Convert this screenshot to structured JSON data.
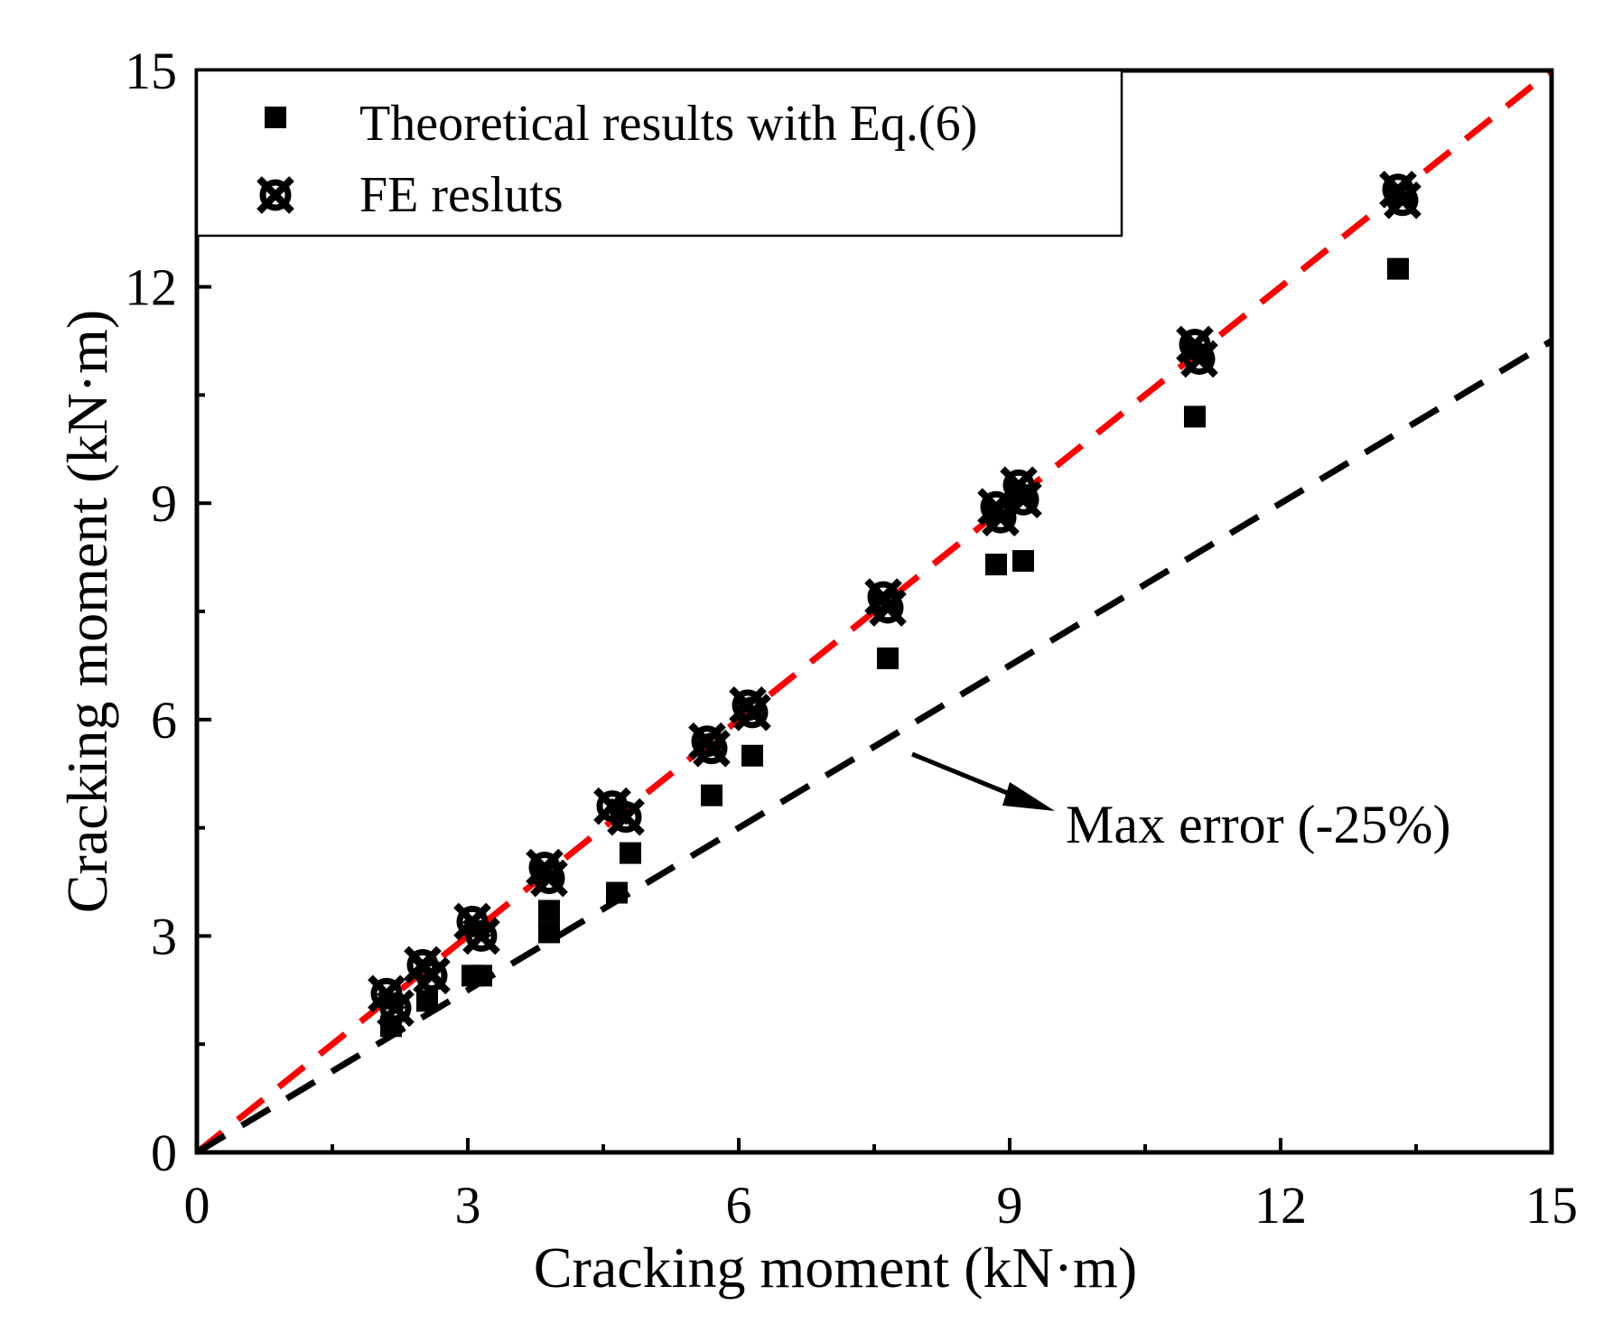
{
  "chart_data": {
    "type": "scatter",
    "xlabel": "Cracking moment (kN·m)",
    "ylabel": "Cracking moment (kN·m)",
    "xlim": [
      0,
      15
    ],
    "ylim": [
      0,
      15
    ],
    "x_ticks": [
      0,
      3,
      6,
      9,
      12,
      15
    ],
    "y_ticks": [
      0,
      3,
      6,
      9,
      12,
      15
    ],
    "x_tick_labels": [
      "0",
      "3",
      "6",
      "9",
      "12",
      "15"
    ],
    "y_tick_labels": [
      "0",
      "3",
      "6",
      "9",
      "12",
      "15"
    ],
    "grid": false,
    "legend_position": "top-left",
    "series": [
      {
        "name": "Theoretical results with Eq.(6)",
        "marker": "square",
        "color": "#000000",
        "x": [
          2.15,
          2.55,
          3.05,
          3.15,
          3.9,
          3.9,
          4.65,
          4.8,
          5.7,
          6.15,
          7.65,
          8.85,
          9.15,
          11.05,
          13.3
        ],
        "y": [
          1.75,
          2.1,
          2.45,
          2.45,
          3.35,
          3.05,
          3.6,
          4.15,
          4.95,
          5.5,
          6.85,
          8.15,
          8.2,
          10.2,
          12.25
        ]
      },
      {
        "name": "FE resluts",
        "marker": "x-circle",
        "color": "#000000",
        "x": [
          2.1,
          2.2,
          2.5,
          2.6,
          3.05,
          3.15,
          3.85,
          3.9,
          4.6,
          4.75,
          5.65,
          5.7,
          6.1,
          6.15,
          7.6,
          7.65,
          8.85,
          8.9,
          9.1,
          9.15,
          11.05,
          11.1,
          13.3,
          13.35
        ],
        "y": [
          2.2,
          2.0,
          2.6,
          2.45,
          3.2,
          3.0,
          3.95,
          3.8,
          4.8,
          4.65,
          5.7,
          5.6,
          6.2,
          6.1,
          7.7,
          7.55,
          8.95,
          8.8,
          9.25,
          9.05,
          11.2,
          11.0,
          13.35,
          13.2
        ]
      }
    ],
    "reference_lines": [
      {
        "name": "y = x",
        "color": "#ff0000",
        "style": "dashed",
        "slope": 1.0
      },
      {
        "name": "-25% bound",
        "color": "#000000",
        "style": "dashed",
        "slope": 0.75
      }
    ],
    "annotations": [
      {
        "text": "Max error (-25%)",
        "points_to": [
          7.0,
          5.25
        ]
      }
    ]
  }
}
